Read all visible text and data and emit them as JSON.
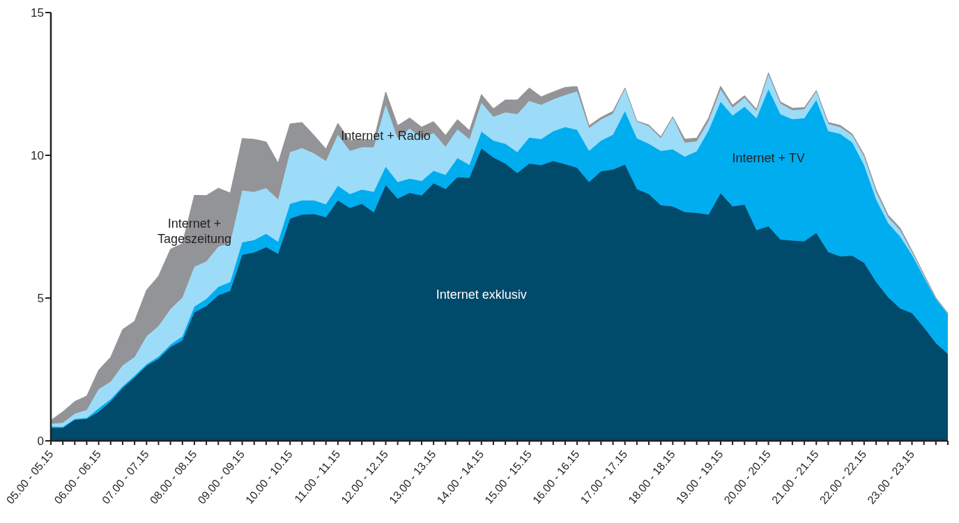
{
  "chart_data": {
    "type": "area",
    "stacked": true,
    "categories": [
      "05.00 - 05.15",
      null,
      null,
      null,
      "06.00 - 06.15",
      null,
      null,
      null,
      "07.00 - 07.15",
      null,
      null,
      null,
      "08.00 - 08.15",
      null,
      null,
      null,
      "09.00 - 09.15",
      null,
      null,
      null,
      "10.00 - 10.15",
      null,
      null,
      null,
      "11.00 - 11.15",
      null,
      null,
      null,
      "12.00 - 12.15",
      null,
      null,
      null,
      "13.00 - 13.15",
      null,
      null,
      null,
      "14.00 - 14.15",
      null,
      null,
      null,
      "15.00 - 15.15",
      null,
      null,
      null,
      "16.00 - 16.15",
      null,
      null,
      null,
      "17.00 - 17.15",
      null,
      null,
      null,
      "18.00 - 18.15",
      null,
      null,
      null,
      "19.00 - 19.15",
      null,
      null,
      null,
      "20.00 - 20.15",
      null,
      null,
      null,
      "21.00 - 21.15",
      null,
      null,
      null,
      "22.00 - 22.15",
      null,
      null,
      null,
      "23.00 - 23.15",
      null,
      null,
      null
    ],
    "ylim": [
      0,
      15
    ],
    "yticks": [
      0,
      5,
      10,
      15
    ],
    "series": [
      {
        "name": "Internet exklusiv",
        "color": "#004a6b",
        "values": [
          0.45,
          0.45,
          0.73,
          0.77,
          1.02,
          1.38,
          1.85,
          2.22,
          2.63,
          2.87,
          3.28,
          3.52,
          4.5,
          4.72,
          5.1,
          5.25,
          6.51,
          6.6,
          6.78,
          6.55,
          7.78,
          7.92,
          7.94,
          7.83,
          8.42,
          8.15,
          8.3,
          8.0,
          8.95,
          8.48,
          8.68,
          8.59,
          9.02,
          8.82,
          9.23,
          9.21,
          10.24,
          9.92,
          9.71,
          9.38,
          9.71,
          9.65,
          9.8,
          9.69,
          9.56,
          9.06,
          9.44,
          9.5,
          9.67,
          8.82,
          8.64,
          8.25,
          8.21,
          8.01,
          7.98,
          7.92,
          8.67,
          8.21,
          8.27,
          7.38,
          7.51,
          7.05,
          7.01,
          6.99,
          7.28,
          6.61,
          6.46,
          6.48,
          6.23,
          5.56,
          5.03,
          4.64,
          4.47,
          3.97,
          3.42,
          3.04
        ]
      },
      {
        "name": "Internet + TV",
        "color": "#00adef",
        "values": [
          0.05,
          0.04,
          0.04,
          0.03,
          0.12,
          0.08,
          0.06,
          0.06,
          0.05,
          0.08,
          0.09,
          0.14,
          0.2,
          0.25,
          0.29,
          0.31,
          0.44,
          0.43,
          0.47,
          0.42,
          0.52,
          0.5,
          0.48,
          0.45,
          0.51,
          0.49,
          0.5,
          0.72,
          0.65,
          0.58,
          0.5,
          0.51,
          0.44,
          0.49,
          0.67,
          0.45,
          0.59,
          0.59,
          0.69,
          0.73,
          0.91,
          0.92,
          1.04,
          1.3,
          1.33,
          1.09,
          1.07,
          1.22,
          1.87,
          1.77,
          1.76,
          1.9,
          2.0,
          1.94,
          2.16,
          2.95,
          3.2,
          3.18,
          3.43,
          3.91,
          4.8,
          4.39,
          4.25,
          4.31,
          4.66,
          4.24,
          4.29,
          3.97,
          3.42,
          2.89,
          2.6,
          2.52,
          2.04,
          1.76,
          1.55,
          1.4
        ]
      },
      {
        "name": "Internet + Radio",
        "color": "#9ddcf9",
        "values": [
          0.1,
          0.14,
          0.18,
          0.28,
          0.67,
          0.61,
          0.73,
          0.65,
          0.98,
          1.07,
          1.24,
          1.36,
          1.4,
          1.31,
          1.41,
          1.37,
          1.81,
          1.69,
          1.6,
          1.48,
          1.81,
          1.83,
          1.65,
          1.52,
          1.79,
          1.51,
          1.48,
          1.56,
          2.17,
          1.53,
          1.75,
          1.49,
          1.32,
          0.99,
          1.01,
          0.9,
          1.01,
          0.84,
          1.1,
          1.33,
          1.28,
          1.2,
          1.12,
          1.12,
          1.35,
          0.81,
          0.74,
          0.74,
          0.8,
          0.59,
          0.61,
          0.45,
          1.11,
          0.49,
          0.35,
          0.33,
          0.44,
          0.28,
          0.32,
          0.26,
          0.52,
          0.37,
          0.32,
          0.31,
          0.3,
          0.25,
          0.23,
          0.25,
          0.3,
          0.27,
          0.2,
          0.22,
          0.1,
          0.06,
          0.02,
          0.01
        ]
      },
      {
        "name": "Internet + Tageszeitung",
        "color": "#929497",
        "values": [
          0.12,
          0.39,
          0.43,
          0.49,
          0.67,
          0.86,
          1.26,
          1.26,
          1.62,
          1.75,
          2.1,
          1.89,
          2.5,
          2.31,
          2.05,
          1.75,
          1.83,
          1.84,
          1.62,
          1.28,
          0.99,
          0.9,
          0.63,
          0.42,
          0.4,
          0.36,
          0.28,
          0.25,
          0.45,
          0.45,
          0.38,
          0.4,
          0.4,
          0.4,
          0.34,
          0.31,
          0.29,
          0.28,
          0.44,
          0.5,
          0.46,
          0.28,
          0.26,
          0.27,
          0.17,
          0.08,
          0.08,
          0.08,
          0.02,
          0.02,
          0.05,
          0.05,
          0.03,
          0.13,
          0.11,
          0.11,
          0.11,
          0.09,
          0.07,
          0.06,
          0.06,
          0.06,
          0.07,
          0.06,
          0.03,
          0.05,
          0.07,
          0.05,
          0.07,
          0.08,
          0.08,
          0.08,
          0.05,
          0.04,
          0.02,
          0.02
        ]
      }
    ]
  }
}
